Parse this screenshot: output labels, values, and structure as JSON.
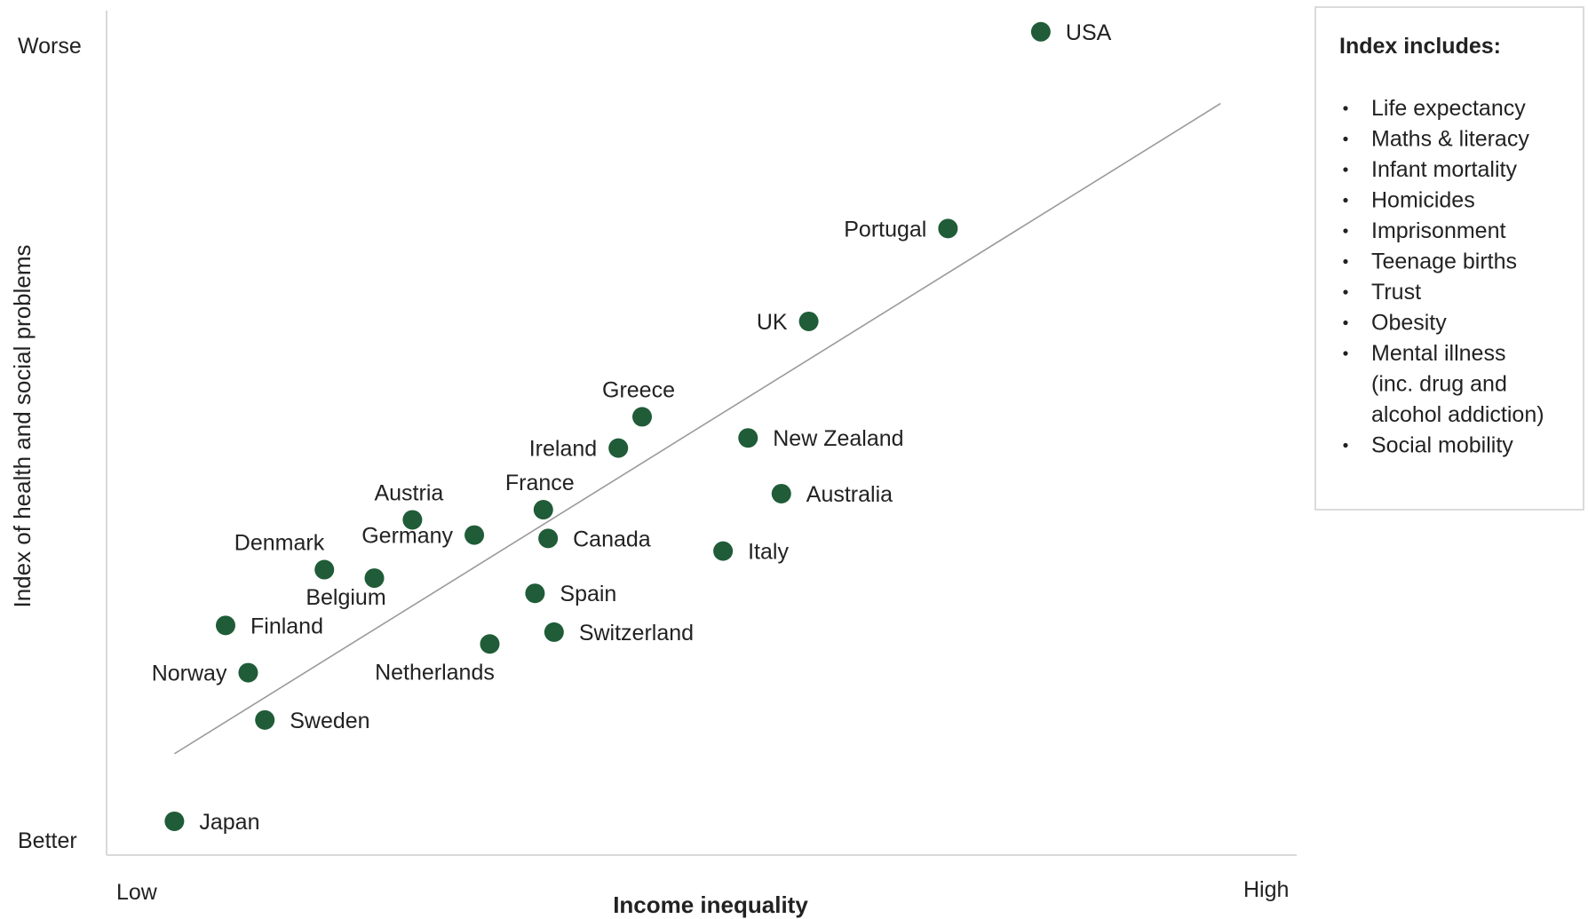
{
  "chart_data": {
    "type": "scatter",
    "xlabel": "Income inequality",
    "ylabel": "Index of health and social problems",
    "x_tick_low": "Low",
    "x_tick_high": "High",
    "y_tick_low": "Better",
    "y_tick_high": "Worse",
    "xlim": [
      0,
      10
    ],
    "ylim": [
      0,
      10
    ],
    "grid": false,
    "point_color": "#1f5c37",
    "trend_color": "#9a9a9a",
    "trendline": {
      "x": [
        0.57,
        9.36
      ],
      "y": [
        1.2,
        8.9
      ]
    },
    "points": [
      {
        "name": "USA",
        "x": 7.85,
        "y": 9.75,
        "label_pos": "right"
      },
      {
        "name": "Portugal",
        "x": 7.07,
        "y": 7.42,
        "label_pos": "left"
      },
      {
        "name": "UK",
        "x": 5.9,
        "y": 6.32,
        "label_pos": "left"
      },
      {
        "name": "Greece",
        "x": 4.5,
        "y": 5.19,
        "label_pos": "above"
      },
      {
        "name": "Ireland",
        "x": 4.3,
        "y": 4.82,
        "label_pos": "left"
      },
      {
        "name": "New Zealand",
        "x": 5.39,
        "y": 4.94,
        "label_pos": "right"
      },
      {
        "name": "Australia",
        "x": 5.67,
        "y": 4.28,
        "label_pos": "right"
      },
      {
        "name": "France",
        "x": 3.67,
        "y": 4.09,
        "label_pos": "above"
      },
      {
        "name": "Canada",
        "x": 3.71,
        "y": 3.75,
        "label_pos": "right"
      },
      {
        "name": "Italy",
        "x": 5.18,
        "y": 3.6,
        "label_pos": "right"
      },
      {
        "name": "Austria",
        "x": 2.57,
        "y": 3.97,
        "label_pos": "above"
      },
      {
        "name": "Germany",
        "x": 3.09,
        "y": 3.79,
        "label_pos": "left"
      },
      {
        "name": "Denmark",
        "x": 1.83,
        "y": 3.38,
        "label_pos": "above-left"
      },
      {
        "name": "Belgium",
        "x": 2.25,
        "y": 3.28,
        "label_pos": "below"
      },
      {
        "name": "Spain",
        "x": 3.6,
        "y": 3.1,
        "label_pos": "right"
      },
      {
        "name": "Switzerland",
        "x": 3.76,
        "y": 2.64,
        "label_pos": "right"
      },
      {
        "name": "Netherlands",
        "x": 3.22,
        "y": 2.5,
        "label_pos": "below-left"
      },
      {
        "name": "Finland",
        "x": 1.0,
        "y": 2.72,
        "label_pos": "right"
      },
      {
        "name": "Norway",
        "x": 1.19,
        "y": 2.16,
        "label_pos": "left"
      },
      {
        "name": "Sweden",
        "x": 1.33,
        "y": 1.6,
        "label_pos": "right"
      },
      {
        "name": "Japan",
        "x": 0.57,
        "y": 0.4,
        "label_pos": "right"
      }
    ]
  },
  "index_box": {
    "title": "Index includes:",
    "items": [
      "Life expectancy",
      "Maths & literacy",
      "Infant mortality",
      "Homicides",
      "Imprisonment",
      "Teenage births",
      "Trust",
      "Obesity",
      [
        "Mental illness",
        "(inc. drug and",
        "alcohol addiction)"
      ],
      "Social mobility"
    ]
  }
}
